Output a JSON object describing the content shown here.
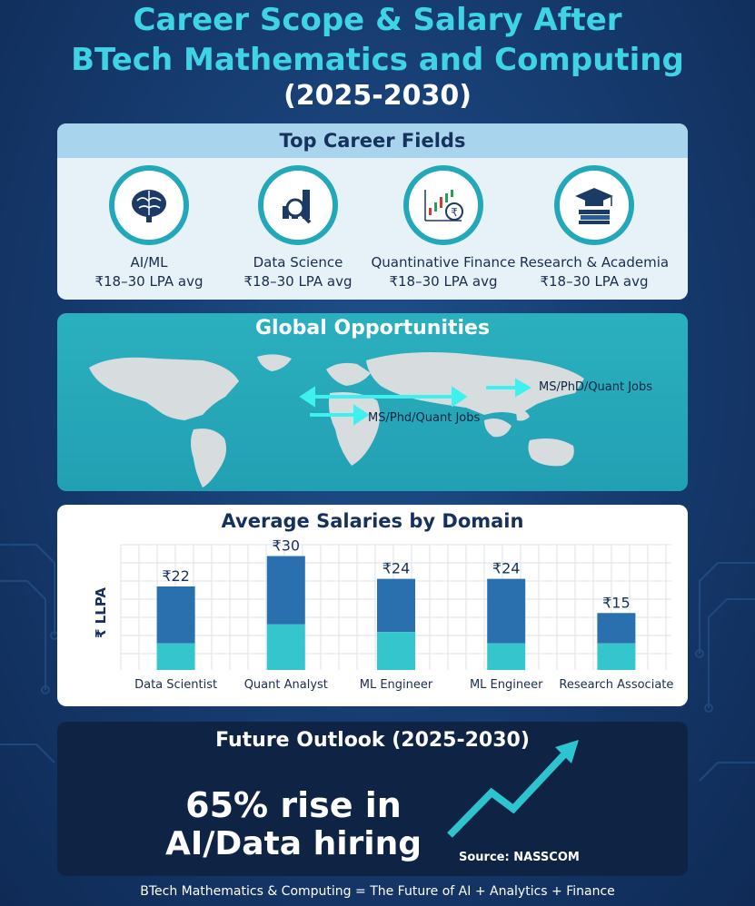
{
  "header": {
    "title_line1": "Career Scope & Salary After",
    "title_line2": "BTech Mathematics and Computing",
    "title_line3": "(2025-2030)"
  },
  "careers": {
    "heading": "Top Career Fields",
    "items": [
      {
        "name": "AI/ML",
        "salary": "₹18–30 LPA avg",
        "icon": "brain-icon"
      },
      {
        "name": "Data Science",
        "salary": "₹18–30 LPA avg",
        "icon": "data-chart-magnifier-icon"
      },
      {
        "name": "Quantinative Finance",
        "salary": "₹18–30 LPA avg",
        "icon": "candlestick-rupee-icon"
      },
      {
        "name": "Research & Academia",
        "salary": "₹18–30 LPA avg",
        "icon": "graduation-cap-books-icon"
      }
    ]
  },
  "global": {
    "heading": "Global Opportunities",
    "label_1": "MS/Phd/Quant Jobs",
    "label_2": "MS/PhD/Quant Jobs"
  },
  "chart_data": {
    "type": "bar",
    "title": "Average Salaries by Domain",
    "ylabel": "₹ LLPA",
    "xlabel": "",
    "categories": [
      "Data Scientist",
      "Quant Analyst",
      "ML Engineer",
      "ML Engineer",
      "Research Associate"
    ],
    "values": [
      22,
      30,
      24,
      24,
      15
    ],
    "value_labels": [
      "₹22",
      "₹30",
      "₹24",
      "₹24",
      "₹15"
    ],
    "lower_segment_values": [
      7,
      12,
      10,
      7,
      7
    ],
    "ylim": [
      0,
      33
    ],
    "grid": true,
    "colors": {
      "upper": "#2a6fae",
      "lower": "#34c6cc"
    }
  },
  "outlook": {
    "heading": "Future Outlook (2025-2030)",
    "big_line1": "65% rise in",
    "big_line2": "AI/Data hiring",
    "source": "Source: NASSCOM",
    "arrow_color": "#2ec4cf"
  },
  "footer": {
    "text": "BTech Mathematics & Computing = The Future of AI + Analytics + Finance"
  },
  "colors": {
    "accent": "#3fd3e6",
    "teal": "#22a8b8",
    "navy": "#16325c"
  }
}
